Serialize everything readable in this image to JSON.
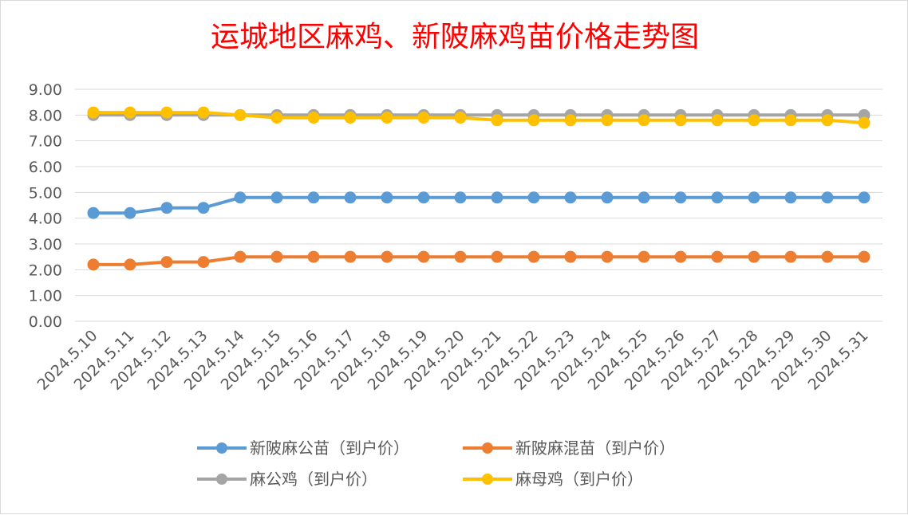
{
  "chart_data": {
    "type": "line",
    "title": "运城地区麻鸡、新陂麻鸡苗价格走势图",
    "title_color": "#ff0000",
    "xlabel": "",
    "ylabel": "",
    "categories": [
      "2024.5.10",
      "2024.5.11",
      "2024.5.12",
      "2024.5.13",
      "2024.5.14",
      "2024.5.15",
      "2024.5.16",
      "2024.5.17",
      "2024.5.18",
      "2024.5.19",
      "2024.5.20",
      "2024.5.21",
      "2024.5.22",
      "2024.5.23",
      "2024.5.24",
      "2024.5.25",
      "2024.5.26",
      "2024.5.27",
      "2024.5.28",
      "2024.5.29",
      "2024.5.30",
      "2024.5.31"
    ],
    "ylim": [
      0,
      9
    ],
    "yticks": [
      "0.00",
      "1.00",
      "2.00",
      "3.00",
      "4.00",
      "5.00",
      "6.00",
      "7.00",
      "8.00",
      "9.00"
    ],
    "grid": true,
    "legend_position": "bottom",
    "series": [
      {
        "name": "新陂麻公苗（到户价）",
        "color": "#5b9bd5",
        "values": [
          4.2,
          4.2,
          4.4,
          4.4,
          4.8,
          4.8,
          4.8,
          4.8,
          4.8,
          4.8,
          4.8,
          4.8,
          4.8,
          4.8,
          4.8,
          4.8,
          4.8,
          4.8,
          4.8,
          4.8,
          4.8,
          4.8
        ]
      },
      {
        "name": "新陂麻混苗（到户价）",
        "color": "#ed7d31",
        "values": [
          2.2,
          2.2,
          2.3,
          2.3,
          2.5,
          2.5,
          2.5,
          2.5,
          2.5,
          2.5,
          2.5,
          2.5,
          2.5,
          2.5,
          2.5,
          2.5,
          2.5,
          2.5,
          2.5,
          2.5,
          2.5,
          2.5
        ]
      },
      {
        "name": "麻公鸡（到户价）",
        "color": "#a5a5a5",
        "values": [
          8.0,
          8.0,
          8.0,
          8.0,
          8.0,
          8.0,
          8.0,
          8.0,
          8.0,
          8.0,
          8.0,
          8.0,
          8.0,
          8.0,
          8.0,
          8.0,
          8.0,
          8.0,
          8.0,
          8.0,
          8.0,
          8.0
        ]
      },
      {
        "name": "麻母鸡（到户价）",
        "color": "#ffc000",
        "values": [
          8.1,
          8.1,
          8.1,
          8.1,
          8.0,
          7.9,
          7.9,
          7.9,
          7.9,
          7.9,
          7.9,
          7.8,
          7.8,
          7.8,
          7.8,
          7.8,
          7.8,
          7.8,
          7.8,
          7.8,
          7.8,
          7.7
        ]
      }
    ]
  }
}
